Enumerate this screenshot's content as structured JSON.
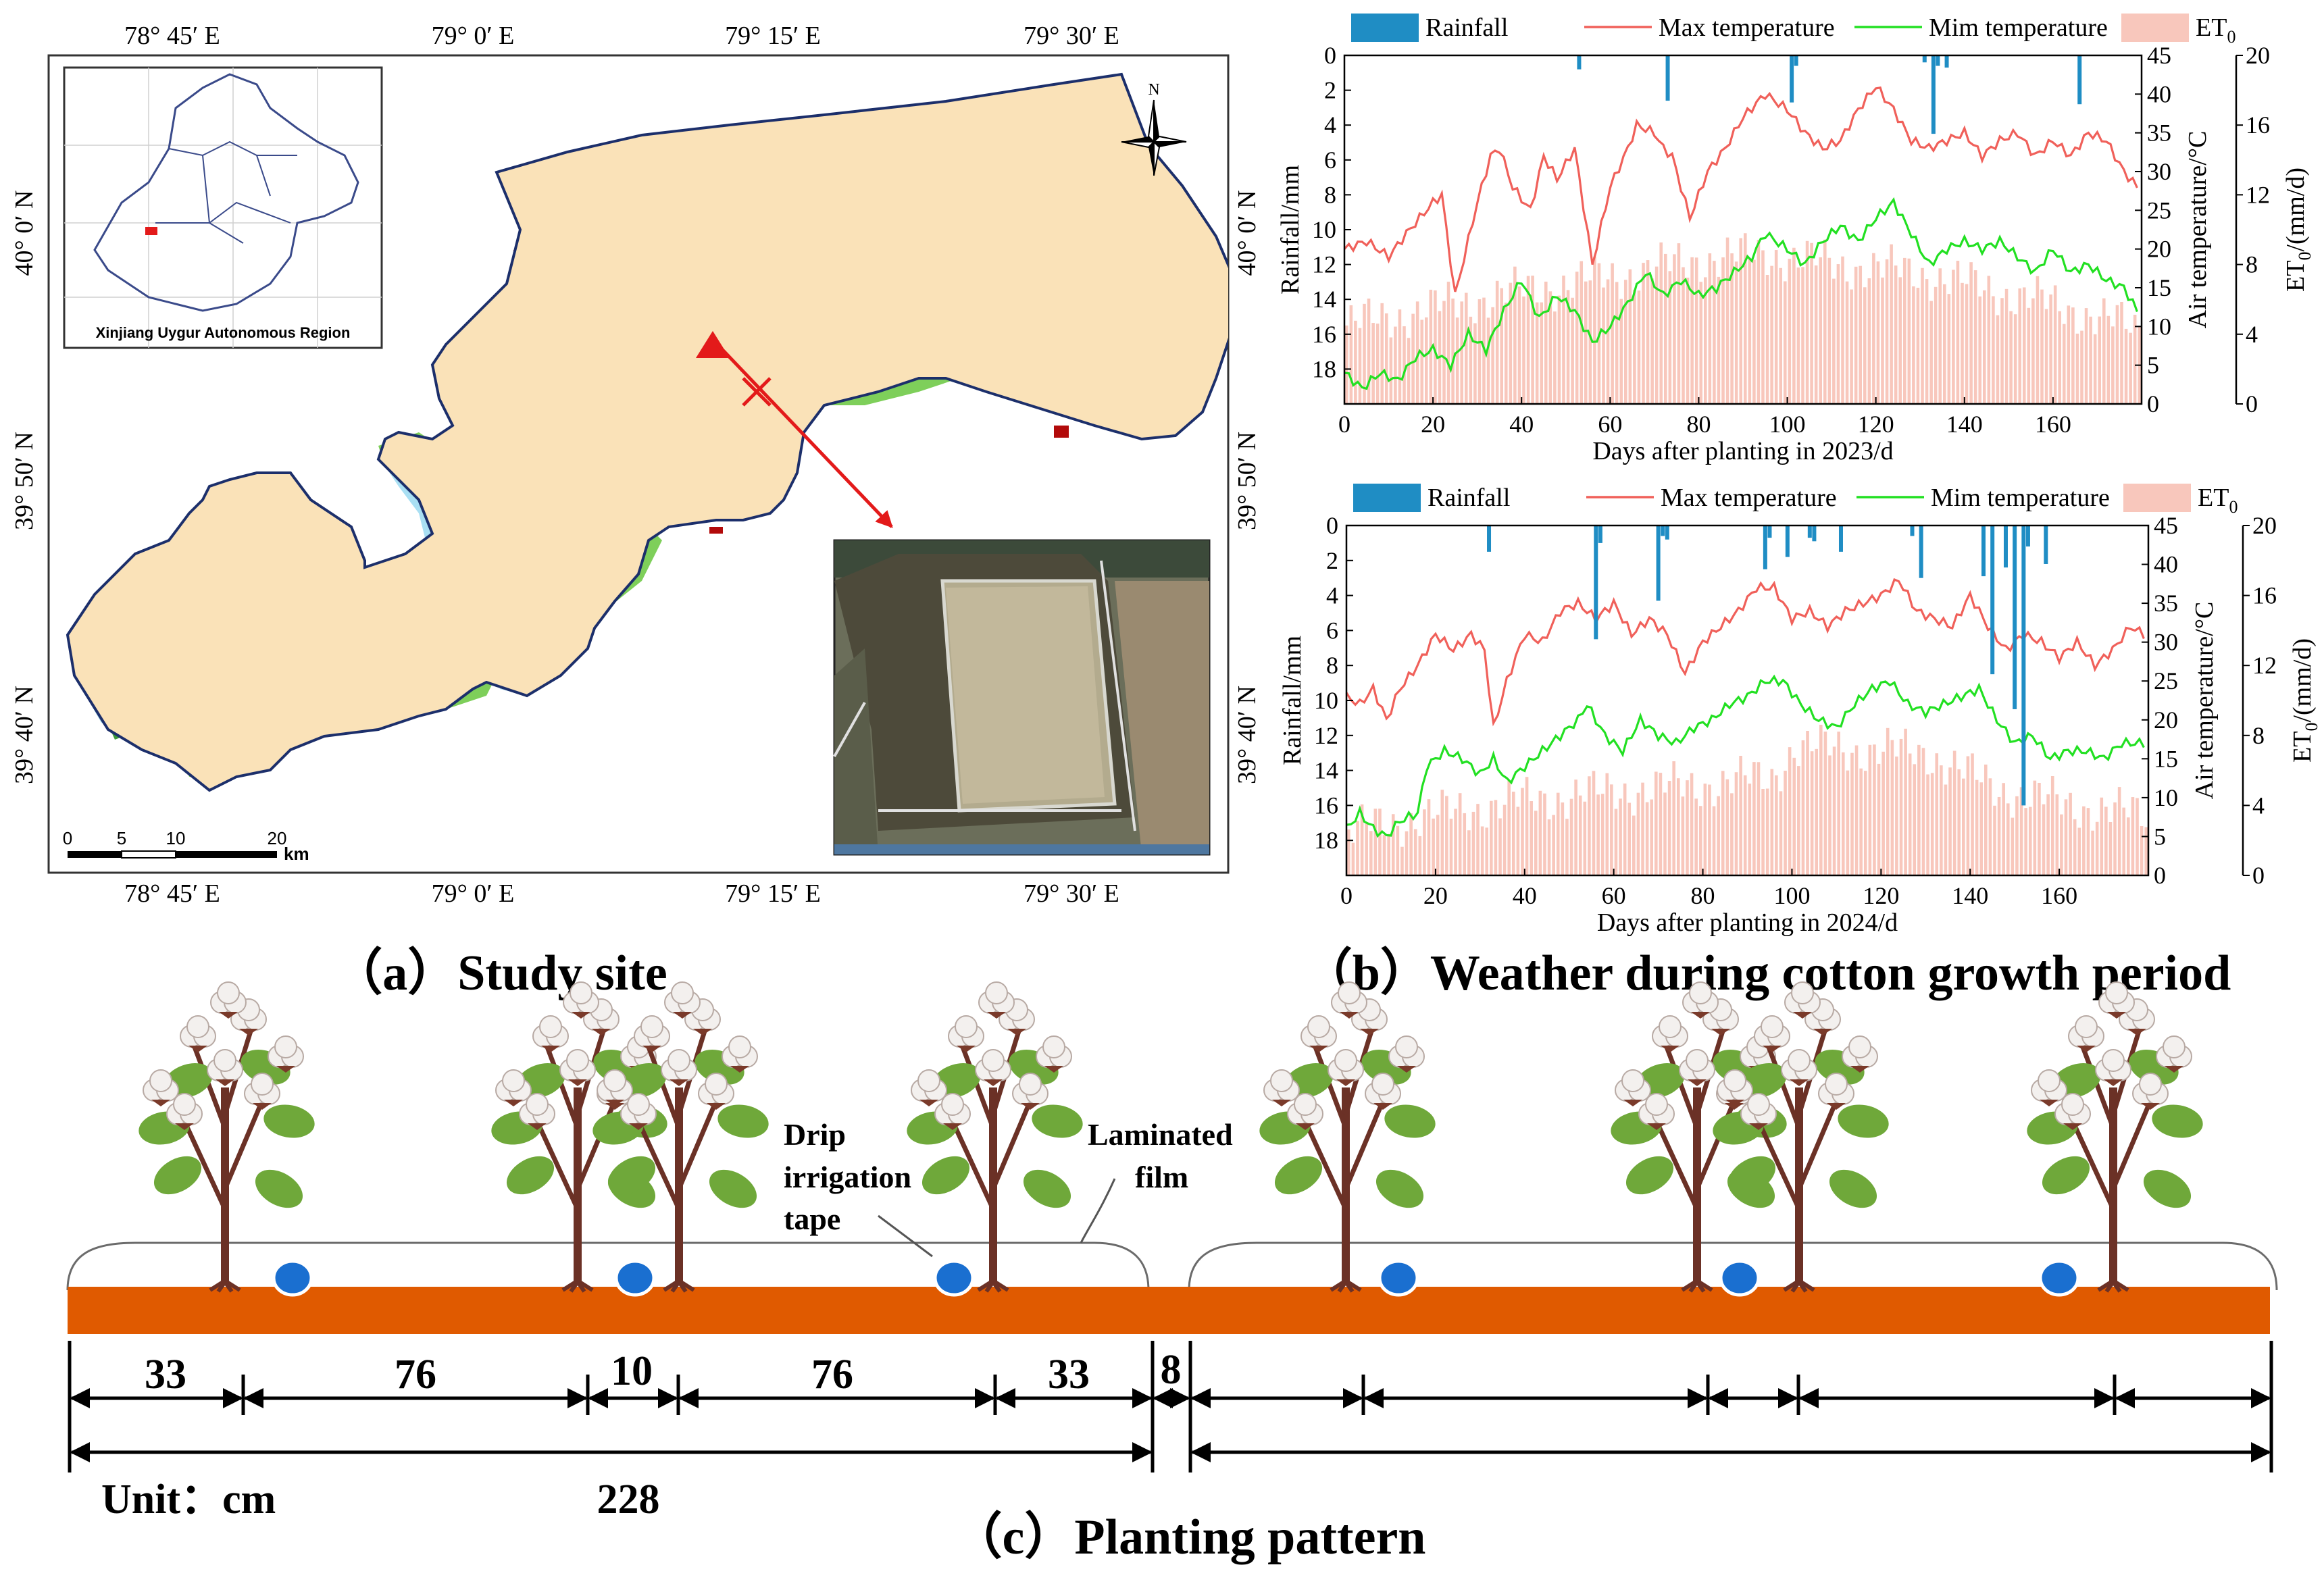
{
  "map": {
    "top_lon_labels": [
      "78° 45′ E",
      "79° 0′ E",
      "79° 15′ E",
      "79° 30′ E"
    ],
    "bottom_lon_labels": [
      "78° 45′ E",
      "79° 0′ E",
      "79° 15′ E",
      "79° 30′ E"
    ],
    "left_lat_labels": [
      "40° 0′ N",
      "39° 50′ N",
      "39° 40′ N"
    ],
    "right_lat_labels": [
      "40° 0′ N",
      "39° 50′ N",
      "39° 40′ N"
    ],
    "inset_label": "Xinjiang Uygur Autonomous Region",
    "north_label": "N",
    "scale_numbers": [
      "0",
      "5",
      "10",
      "20"
    ],
    "scale_unit": "km",
    "colors": {
      "cropland": "#fae2b8",
      "grassland": "#7ecf5a",
      "forest": "#3c9a3c",
      "built_up": "#b20a0a",
      "water": "#a9dff3",
      "shallow": "#c9d7f2",
      "boundary": "#1c2f6b",
      "pointer": "#e31a1a"
    }
  },
  "captions": {
    "a": "（a）Study site",
    "b": "（b）Weather during cotton growth period",
    "c": "（c）Planting pattern"
  },
  "chart_data": [
    {
      "type": "bar",
      "title": "",
      "legend": [
        {
          "name": "Rainfall",
          "color": "#1f8dc4",
          "kind": "bar"
        },
        {
          "name": "Max temperature",
          "color": "#f0605a",
          "kind": "line"
        },
        {
          "name": "Mim temperature",
          "color": "#22e022",
          "kind": "line"
        },
        {
          "name": "ET",
          "subscript": "0",
          "color": "#f8c7bc",
          "kind": "bar"
        }
      ],
      "xlabel": "Days after planting in 2023/d",
      "xlim": [
        0,
        180
      ],
      "xticks": [
        0,
        20,
        40,
        60,
        80,
        100,
        120,
        140,
        160
      ],
      "y_rain_label": "Rainfall/mm",
      "y_rain_lim": [
        20,
        0
      ],
      "y_rain_ticks": [
        0,
        2,
        4,
        6,
        8,
        10,
        12,
        14,
        16,
        18
      ],
      "y_temp_label": "Air temperature/°C",
      "y_temp_lim": [
        0,
        45
      ],
      "y_temp_ticks": [
        0,
        5,
        10,
        15,
        20,
        25,
        30,
        35,
        40,
        45
      ],
      "y_et_label": "ET",
      "y_et_label_subscript": "0",
      "y_et_label_unit": "/(mm/d)",
      "y_et_lim": [
        0,
        20
      ],
      "y_et_ticks": [
        0,
        4,
        8,
        12,
        16,
        20
      ],
      "rainfall": [
        [
          53,
          0.8
        ],
        [
          73,
          2.6
        ],
        [
          101,
          2.7
        ],
        [
          102,
          0.6
        ],
        [
          131,
          0.4
        ],
        [
          133,
          4.5
        ],
        [
          134,
          0.6
        ],
        [
          136,
          0.7
        ],
        [
          166,
          2.8
        ]
      ],
      "tmax": [
        [
          0,
          20
        ],
        [
          5,
          21
        ],
        [
          10,
          19
        ],
        [
          14,
          22
        ],
        [
          20,
          26
        ],
        [
          22,
          27
        ],
        [
          25,
          14
        ],
        [
          30,
          26
        ],
        [
          33,
          32
        ],
        [
          35,
          33
        ],
        [
          38,
          28
        ],
        [
          42,
          25
        ],
        [
          45,
          32
        ],
        [
          48,
          29
        ],
        [
          52,
          33
        ],
        [
          56,
          18
        ],
        [
          60,
          28
        ],
        [
          64,
          33
        ],
        [
          66,
          36
        ],
        [
          70,
          35
        ],
        [
          72,
          33
        ],
        [
          74,
          32
        ],
        [
          78,
          24
        ],
        [
          82,
          30
        ],
        [
          86,
          33
        ],
        [
          90,
          37
        ],
        [
          95,
          40
        ],
        [
          100,
          38
        ],
        [
          104,
          35
        ],
        [
          108,
          33
        ],
        [
          112,
          34
        ],
        [
          116,
          38
        ],
        [
          120,
          41
        ],
        [
          124,
          38
        ],
        [
          128,
          34
        ],
        [
          132,
          33
        ],
        [
          136,
          34
        ],
        [
          140,
          35
        ],
        [
          144,
          32
        ],
        [
          148,
          34
        ],
        [
          152,
          35
        ],
        [
          156,
          32
        ],
        [
          160,
          34
        ],
        [
          164,
          32
        ],
        [
          168,
          35
        ],
        [
          172,
          34
        ],
        [
          176,
          30
        ],
        [
          179,
          28
        ]
      ],
      "tmin": [
        [
          0,
          4
        ],
        [
          4,
          2
        ],
        [
          8,
          4
        ],
        [
          12,
          3
        ],
        [
          16,
          6
        ],
        [
          20,
          7
        ],
        [
          24,
          5
        ],
        [
          28,
          9
        ],
        [
          32,
          7
        ],
        [
          36,
          12
        ],
        [
          40,
          16
        ],
        [
          44,
          11
        ],
        [
          48,
          14
        ],
        [
          52,
          12
        ],
        [
          56,
          8
        ],
        [
          60,
          10
        ],
        [
          64,
          13
        ],
        [
          68,
          17
        ],
        [
          72,
          14
        ],
        [
          76,
          16
        ],
        [
          80,
          14
        ],
        [
          84,
          15
        ],
        [
          88,
          17
        ],
        [
          92,
          19
        ],
        [
          95,
          22
        ],
        [
          100,
          20
        ],
        [
          104,
          18
        ],
        [
          108,
          21
        ],
        [
          112,
          23
        ],
        [
          116,
          21
        ],
        [
          120,
          24
        ],
        [
          124,
          26
        ],
        [
          128,
          22
        ],
        [
          132,
          18
        ],
        [
          136,
          20
        ],
        [
          140,
          21
        ],
        [
          144,
          20
        ],
        [
          148,
          21
        ],
        [
          152,
          19
        ],
        [
          156,
          17
        ],
        [
          160,
          20
        ],
        [
          164,
          17
        ],
        [
          168,
          18
        ],
        [
          172,
          16
        ],
        [
          176,
          15
        ],
        [
          179,
          12
        ]
      ],
      "et0": [
        [
          0,
          4.5
        ],
        [
          20,
          5.5
        ],
        [
          40,
          6.5
        ],
        [
          60,
          7.3
        ],
        [
          80,
          8.3
        ],
        [
          95,
          8.6
        ],
        [
          110,
          8.0
        ],
        [
          130,
          7.5
        ],
        [
          150,
          6.3
        ],
        [
          170,
          5.0
        ],
        [
          179,
          4.2
        ]
      ]
    },
    {
      "type": "bar",
      "title": "",
      "legend": [
        {
          "name": "Rainfall",
          "color": "#1f8dc4",
          "kind": "bar"
        },
        {
          "name": "Max temperature",
          "color": "#f0605a",
          "kind": "line"
        },
        {
          "name": "Mim temperature",
          "color": "#22e022",
          "kind": "line"
        },
        {
          "name": "ET",
          "subscript": "0",
          "color": "#f8c7bc",
          "kind": "bar"
        }
      ],
      "xlabel": "Days after planting in 2024/d",
      "xlim": [
        0,
        180
      ],
      "xticks": [
        0,
        20,
        40,
        60,
        80,
        100,
        120,
        140,
        160
      ],
      "y_rain_label": "Rainfall/mm",
      "y_rain_lim": [
        20,
        0
      ],
      "y_rain_ticks": [
        0,
        2,
        4,
        6,
        8,
        10,
        12,
        14,
        16,
        18
      ],
      "y_temp_label": "Air temperature/°C",
      "y_temp_lim": [
        0,
        45
      ],
      "y_temp_ticks": [
        0,
        5,
        10,
        15,
        20,
        25,
        30,
        35,
        40,
        45
      ],
      "y_et_label": "ET",
      "y_et_label_subscript": "0",
      "y_et_label_unit": "/(mm/d)",
      "y_et_lim": [
        0,
        20
      ],
      "y_et_ticks": [
        0,
        4,
        8,
        12,
        16,
        20
      ],
      "rainfall": [
        [
          32,
          1.5
        ],
        [
          56,
          6.5
        ],
        [
          57,
          1.0
        ],
        [
          70,
          4.3
        ],
        [
          71,
          0.6
        ],
        [
          72,
          0.8
        ],
        [
          94,
          2.5
        ],
        [
          95,
          0.7
        ],
        [
          99,
          1.8
        ],
        [
          104,
          0.7
        ],
        [
          105,
          0.9
        ],
        [
          111,
          1.5
        ],
        [
          127,
          0.6
        ],
        [
          129,
          3.0
        ],
        [
          143,
          2.9
        ],
        [
          145,
          8.5
        ],
        [
          148,
          2.4
        ],
        [
          150,
          10.5
        ],
        [
          152,
          16.0
        ],
        [
          153,
          1.2
        ],
        [
          157,
          2.2
        ]
      ],
      "tmax": [
        [
          0,
          23
        ],
        [
          3,
          22
        ],
        [
          6,
          24
        ],
        [
          9,
          20
        ],
        [
          12,
          24
        ],
        [
          16,
          27
        ],
        [
          20,
          31
        ],
        [
          24,
          29
        ],
        [
          28,
          31
        ],
        [
          31,
          29
        ],
        [
          33,
          19
        ],
        [
          36,
          25
        ],
        [
          40,
          31
        ],
        [
          44,
          30
        ],
        [
          48,
          34
        ],
        [
          52,
          35
        ],
        [
          56,
          33
        ],
        [
          60,
          35
        ],
        [
          64,
          31
        ],
        [
          68,
          33
        ],
        [
          72,
          31
        ],
        [
          76,
          26
        ],
        [
          80,
          30
        ],
        [
          84,
          32
        ],
        [
          88,
          34
        ],
        [
          92,
          37
        ],
        [
          96,
          37
        ],
        [
          100,
          33
        ],
        [
          104,
          34
        ],
        [
          108,
          32
        ],
        [
          112,
          34
        ],
        [
          116,
          35
        ],
        [
          120,
          36
        ],
        [
          124,
          38
        ],
        [
          128,
          34
        ],
        [
          132,
          33
        ],
        [
          136,
          32
        ],
        [
          140,
          36
        ],
        [
          144,
          32
        ],
        [
          148,
          29
        ],
        [
          152,
          31
        ],
        [
          156,
          30
        ],
        [
          160,
          28
        ],
        [
          164,
          30
        ],
        [
          168,
          27
        ],
        [
          172,
          29
        ],
        [
          176,
          32
        ],
        [
          179,
          31
        ]
      ],
      "tmin": [
        [
          0,
          6
        ],
        [
          3,
          8
        ],
        [
          6,
          6
        ],
        [
          9,
          5
        ],
        [
          12,
          7
        ],
        [
          16,
          8
        ],
        [
          18,
          14
        ],
        [
          22,
          16
        ],
        [
          26,
          15
        ],
        [
          30,
          13
        ],
        [
          33,
          15
        ],
        [
          36,
          12
        ],
        [
          40,
          14
        ],
        [
          44,
          16
        ],
        [
          48,
          18
        ],
        [
          52,
          20
        ],
        [
          54,
          22
        ],
        [
          58,
          18
        ],
        [
          62,
          16
        ],
        [
          66,
          20
        ],
        [
          70,
          18
        ],
        [
          74,
          17
        ],
        [
          78,
          19
        ],
        [
          82,
          20
        ],
        [
          86,
          22
        ],
        [
          90,
          23
        ],
        [
          94,
          25
        ],
        [
          98,
          25
        ],
        [
          102,
          22
        ],
        [
          106,
          20
        ],
        [
          110,
          19
        ],
        [
          114,
          22
        ],
        [
          118,
          24
        ],
        [
          122,
          25
        ],
        [
          126,
          22
        ],
        [
          130,
          21
        ],
        [
          134,
          22
        ],
        [
          138,
          23
        ],
        [
          142,
          24
        ],
        [
          146,
          20
        ],
        [
          150,
          17
        ],
        [
          154,
          18
        ],
        [
          158,
          15
        ],
        [
          162,
          16
        ],
        [
          166,
          16
        ],
        [
          170,
          15
        ],
        [
          174,
          17
        ],
        [
          179,
          17
        ]
      ],
      "et0": [
        [
          0,
          2.5
        ],
        [
          20,
          3.5
        ],
        [
          40,
          4.3
        ],
        [
          60,
          4.8
        ],
        [
          80,
          5.2
        ],
        [
          95,
          5.6
        ],
        [
          100,
          7.3
        ],
        [
          115,
          7.2
        ],
        [
          130,
          7.0
        ],
        [
          145,
          5.0
        ],
        [
          160,
          4.1
        ],
        [
          179,
          3.4
        ]
      ]
    }
  ],
  "planting": {
    "labels": {
      "drip": [
        "Drip",
        "irrigation",
        "tape"
      ],
      "film": [
        "Laminated",
        "film"
      ]
    },
    "segments": [
      "33",
      "76",
      "10",
      "76",
      "33",
      "8"
    ],
    "total": "228",
    "unit": "Unit：cm",
    "colors": {
      "soil": "#e05a00",
      "drip": "#1a6fd0",
      "stem": "#6b3126",
      "leaf": "#6fa83a",
      "boll": "#f3f0ee",
      "film": "#6b6b6b"
    }
  }
}
